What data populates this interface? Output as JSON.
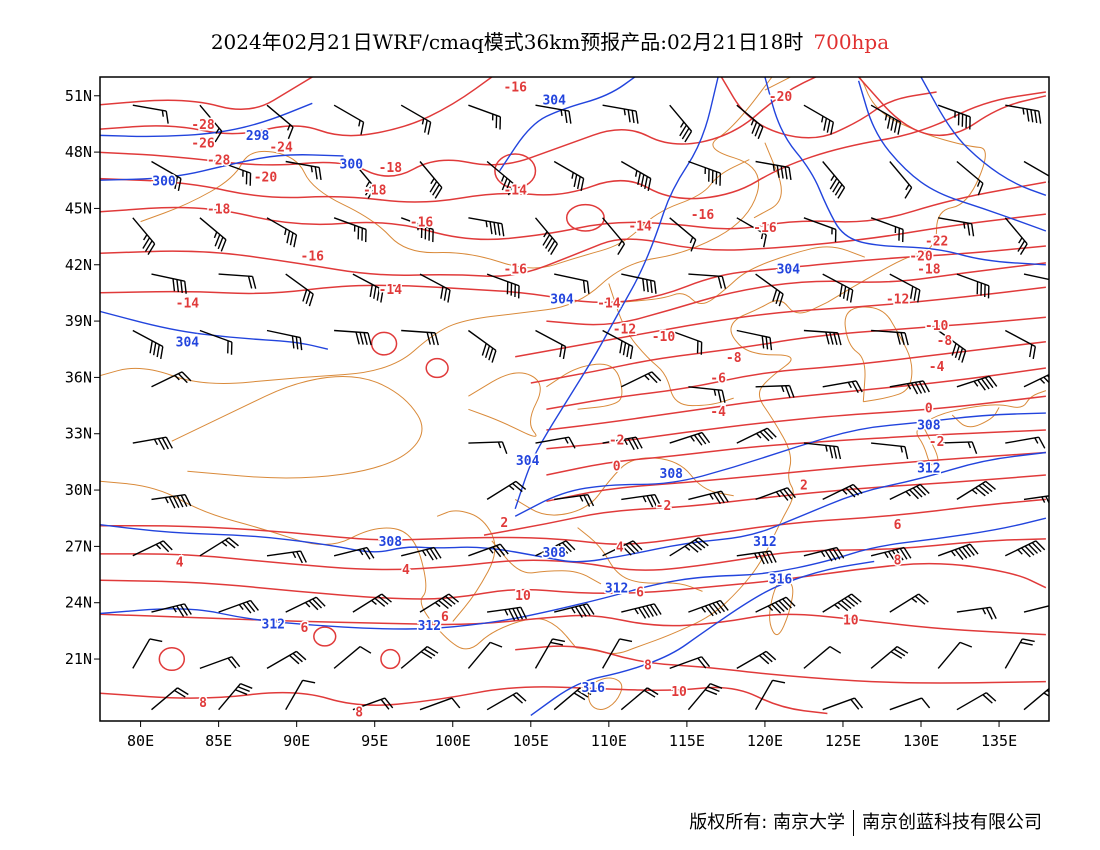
{
  "title": {
    "text": "2024年02月21日WRF/cmaq模式36km预报产品:02月21日18时",
    "level": "700hpa"
  },
  "axes": {
    "lat_labels": [
      "51N",
      "48N",
      "45N",
      "42N",
      "39N",
      "36N",
      "33N",
      "30N",
      "27N",
      "24N",
      "21N"
    ],
    "lon_labels": [
      "80E",
      "85E",
      "90E",
      "95E",
      "100E",
      "105E",
      "110E",
      "115E",
      "120E",
      "125E",
      "130E",
      "135E"
    ]
  },
  "colors": {
    "temperature_contour": "#e03a3a",
    "height_contour": "#2244dd",
    "boundary": "#d98a3a",
    "wind_barb": "#000000"
  },
  "temperature_labels": [
    {
      "text": "-16",
      "lon": 104,
      "lat": 51.5
    },
    {
      "text": "-20",
      "lon": 121,
      "lat": 51
    },
    {
      "text": "-28",
      "lon": 84,
      "lat": 49.5
    },
    {
      "text": "-26",
      "lon": 84,
      "lat": 48.5
    },
    {
      "text": "-24",
      "lon": 89,
      "lat": 48.3
    },
    {
      "text": "-28",
      "lon": 85,
      "lat": 47.6
    },
    {
      "text": "-20",
      "lon": 88,
      "lat": 46.7
    },
    {
      "text": "-18",
      "lon": 95,
      "lat": 46
    },
    {
      "text": "-18",
      "lon": 96,
      "lat": 47.2
    },
    {
      "text": "-14",
      "lon": 104,
      "lat": 46
    },
    {
      "text": "-18",
      "lon": 85,
      "lat": 45
    },
    {
      "text": "-16",
      "lon": 98,
      "lat": 44.3
    },
    {
      "text": "-16",
      "lon": 116,
      "lat": 44.7
    },
    {
      "text": "-14",
      "lon": 112,
      "lat": 44.1
    },
    {
      "text": "-16",
      "lon": 120,
      "lat": 44
    },
    {
      "text": "-16",
      "lon": 91,
      "lat": 42.5
    },
    {
      "text": "-16",
      "lon": 104,
      "lat": 41.8
    },
    {
      "text": "-14",
      "lon": 96,
      "lat": 40.7
    },
    {
      "text": "-14",
      "lon": 83,
      "lat": 40
    },
    {
      "text": "-14",
      "lon": 110,
      "lat": 40
    },
    {
      "text": "-12",
      "lon": 111,
      "lat": 38.6
    },
    {
      "text": "-10",
      "lon": 113.5,
      "lat": 38.2
    },
    {
      "text": "-22",
      "lon": 131,
      "lat": 43.3
    },
    {
      "text": "-20",
      "lon": 130,
      "lat": 42.5
    },
    {
      "text": "-18",
      "lon": 130.5,
      "lat": 41.8
    },
    {
      "text": "-12",
      "lon": 128.5,
      "lat": 40.2
    },
    {
      "text": "-10",
      "lon": 131,
      "lat": 38.8
    },
    {
      "text": "-8",
      "lon": 131.5,
      "lat": 38
    },
    {
      "text": "-8",
      "lon": 118,
      "lat": 37.1
    },
    {
      "text": "-6",
      "lon": 117,
      "lat": 36
    },
    {
      "text": "-4",
      "lon": 117,
      "lat": 34.2
    },
    {
      "text": "-4",
      "lon": 131,
      "lat": 36.6
    },
    {
      "text": "0",
      "lon": 130.5,
      "lat": 34.4
    },
    {
      "text": "-2",
      "lon": 131,
      "lat": 32.6
    },
    {
      "text": "-2",
      "lon": 110.5,
      "lat": 32.7
    },
    {
      "text": "0",
      "lon": 110.5,
      "lat": 31.3
    },
    {
      "text": "-2",
      "lon": 113.5,
      "lat": 29.2
    },
    {
      "text": "2",
      "lon": 122.5,
      "lat": 30.3
    },
    {
      "text": "2",
      "lon": 103.3,
      "lat": 28.3
    },
    {
      "text": "4",
      "lon": 110.7,
      "lat": 27
    },
    {
      "text": "4",
      "lon": 82.5,
      "lat": 26.2
    },
    {
      "text": "4",
      "lon": 97,
      "lat": 25.8
    },
    {
      "text": "6",
      "lon": 128.5,
      "lat": 28.2
    },
    {
      "text": "8",
      "lon": 128.5,
      "lat": 26.3
    },
    {
      "text": "6",
      "lon": 112,
      "lat": 24.6
    },
    {
      "text": "10",
      "lon": 104.5,
      "lat": 24.4
    },
    {
      "text": "6",
      "lon": 99.5,
      "lat": 23.3
    },
    {
      "text": "6",
      "lon": 90.5,
      "lat": 22.7
    },
    {
      "text": "10",
      "lon": 125.5,
      "lat": 23.1
    },
    {
      "text": "8",
      "lon": 112.5,
      "lat": 20.7
    },
    {
      "text": "10",
      "lon": 114.5,
      "lat": 19.3
    },
    {
      "text": "8",
      "lon": 84,
      "lat": 18.7
    },
    {
      "text": "8",
      "lon": 94,
      "lat": 18.2
    }
  ],
  "height_labels": [
    {
      "text": "304",
      "lon": 106.5,
      "lat": 50.8
    },
    {
      "text": "298",
      "lon": 87.5,
      "lat": 48.9
    },
    {
      "text": "300",
      "lon": 93.5,
      "lat": 47.4
    },
    {
      "text": "300",
      "lon": 81.5,
      "lat": 46.5
    },
    {
      "text": "304",
      "lon": 107,
      "lat": 40.2
    },
    {
      "text": "304",
      "lon": 121.5,
      "lat": 41.8
    },
    {
      "text": "304",
      "lon": 83,
      "lat": 37.9
    },
    {
      "text": "304",
      "lon": 104.8,
      "lat": 31.6
    },
    {
      "text": "308",
      "lon": 130.5,
      "lat": 33.5
    },
    {
      "text": "308",
      "lon": 114,
      "lat": 30.9
    },
    {
      "text": "312",
      "lon": 130.5,
      "lat": 31.2
    },
    {
      "text": "312",
      "lon": 120,
      "lat": 27.3
    },
    {
      "text": "308",
      "lon": 96,
      "lat": 27.3
    },
    {
      "text": "308",
      "lon": 106.5,
      "lat": 26.7
    },
    {
      "text": "312",
      "lon": 110.5,
      "lat": 24.8
    },
    {
      "text": "316",
      "lon": 121,
      "lat": 25.3
    },
    {
      "text": "312",
      "lon": 88.5,
      "lat": 22.9
    },
    {
      "text": "312",
      "lon": 98.5,
      "lat": 22.8
    },
    {
      "text": "316",
      "lon": 109,
      "lat": 19.5
    }
  ],
  "footer": {
    "copyright": "版权所有: 南京大学",
    "company": "南京创蓝科技有限公司"
  }
}
